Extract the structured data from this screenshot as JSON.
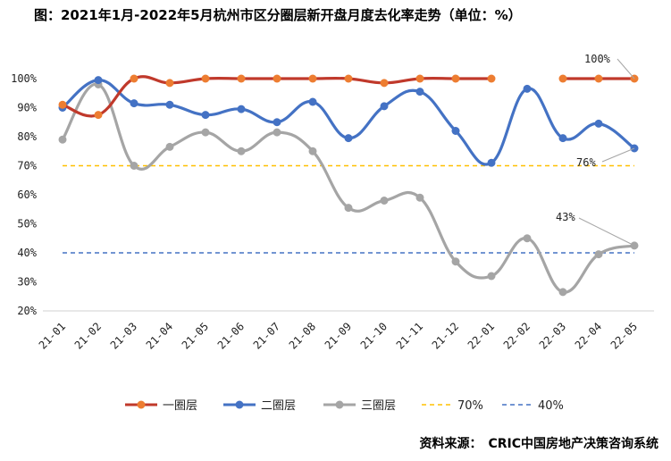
{
  "title": "图：2021年1月-2022年5月杭州市区分圈层新开盘月度去化率走势（单位：%）",
  "source": "资料来源：　CRIC中国房地产决策咨询系统",
  "chart_data": {
    "type": "line",
    "title": "图：2021年1月-2022年5月杭州市区分圈层新开盘月度去化率走势（单位：%）",
    "categories": [
      "21-01",
      "21-02",
      "21-03",
      "21-04",
      "21-05",
      "21-06",
      "21-07",
      "21-08",
      "21-09",
      "21-10",
      "21-11",
      "21-12",
      "22-01",
      "22-02",
      "22-03",
      "22-04",
      "22-05"
    ],
    "ylim": [
      20,
      100
    ],
    "yticks": [
      20,
      30,
      40,
      50,
      60,
      70,
      80,
      90,
      100
    ],
    "ytick_labels": [
      "20%",
      "30%",
      "40%",
      "50%",
      "60%",
      "70%",
      "80%",
      "90%",
      "100%"
    ],
    "series": [
      {
        "name": "一圈层",
        "color": "#c0392b",
        "marker_color": "#ed7d31",
        "values": [
          91,
          87.5,
          100,
          98.5,
          100,
          100,
          100,
          100,
          100,
          98.5,
          100,
          100,
          100,
          null,
          100,
          100,
          100
        ]
      },
      {
        "name": "二圈层",
        "color": "#4472c4",
        "marker_color": "#4472c4",
        "values": [
          90,
          99.5,
          91.5,
          91,
          87.5,
          89.5,
          85,
          92,
          79.5,
          90.5,
          95.5,
          82,
          71,
          96.5,
          79.5,
          84.5,
          76
        ]
      },
      {
        "name": "三圈层",
        "color": "#a5a5a5",
        "marker_color": "#a5a5a5",
        "values": [
          79,
          98,
          70,
          76.5,
          81.5,
          75,
          81.5,
          75,
          55.5,
          58,
          59,
          37,
          32,
          45,
          26.5,
          39.5,
          42.5
        ]
      }
    ],
    "reference_lines": [
      {
        "name": "70%",
        "value": 70,
        "color": "#ffc000"
      },
      {
        "name": "40%",
        "value": 40,
        "color": "#4472c4"
      }
    ],
    "annotations": [
      "100%",
      "76%",
      "43%"
    ],
    "legend_position": "bottom"
  }
}
